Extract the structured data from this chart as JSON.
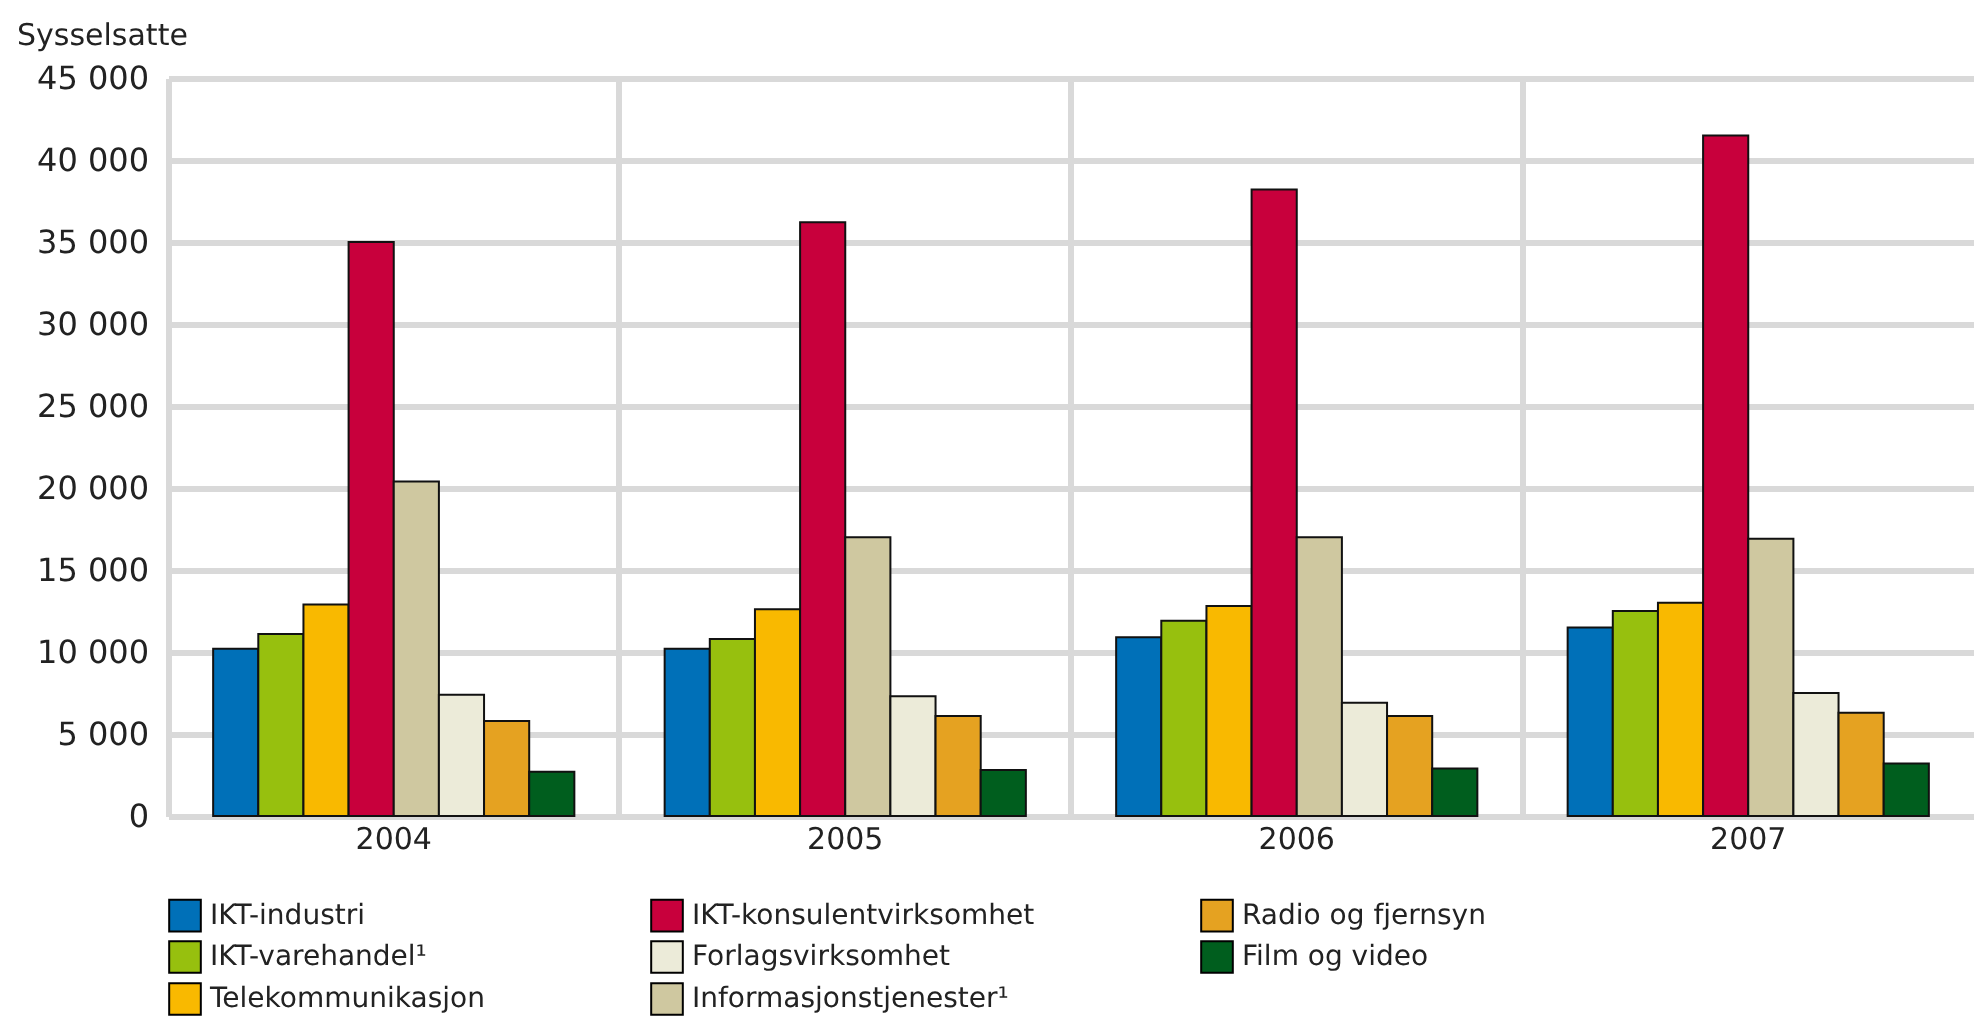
{
  "chart_data": {
    "type": "bar",
    "ylabel": "Sysselsatte",
    "categories": [
      "2004",
      "2005",
      "2006",
      "2007"
    ],
    "series": [
      {
        "name": "IKT-industri",
        "color": "#0070b8",
        "values": [
          10200,
          10200,
          10900,
          11500
        ]
      },
      {
        "name": "IKT-varehandel¹",
        "color": "#97c00e",
        "values": [
          11100,
          10800,
          11900,
          12500
        ]
      },
      {
        "name": "Telekommunikasjon",
        "color": "#f9b900",
        "values": [
          12900,
          12600,
          12800,
          13000
        ]
      },
      {
        "name": "IKT-konsulentvirksomhet",
        "color": "#c8003c",
        "values": [
          35000,
          36200,
          38200,
          41500
        ]
      },
      {
        "name": "Informasjonstjenester¹",
        "color": "#cfc8a0",
        "values": [
          20400,
          17000,
          17000,
          16900
        ]
      },
      {
        "name": "Forlagsvirksomhet",
        "color": "#ecebd9",
        "values": [
          7400,
          7300,
          6900,
          7500
        ]
      },
      {
        "name": "Radio og fjernsyn",
        "color": "#e5a221",
        "values": [
          5800,
          6100,
          6100,
          6300
        ]
      },
      {
        "name": "Film og video",
        "color": "#005e1e",
        "values": [
          2700,
          2800,
          2900,
          3200
        ]
      }
    ],
    "ylim": [
      0,
      45000
    ],
    "yticks": [
      0,
      {
        "value": 5000,
        "label": "5 000"
      },
      {
        "value": 10000,
        "label": "10 000"
      },
      {
        "value": 15000,
        "label": "15 000"
      },
      {
        "value": 20000,
        "label": "20 000"
      },
      {
        "value": 25000,
        "label": "25 000"
      },
      {
        "value": 30000,
        "label": "30 000"
      },
      {
        "value": 35000,
        "label": "35 000"
      },
      {
        "value": 40000,
        "label": "40 000"
      },
      {
        "value": 45000,
        "label": "45 000"
      }
    ],
    "grid": true,
    "legend": "bottom"
  }
}
